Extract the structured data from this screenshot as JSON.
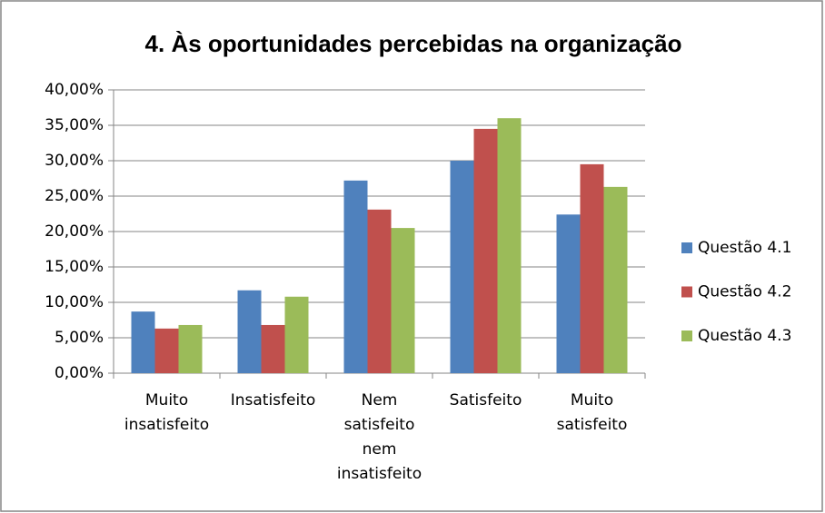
{
  "chart_data": {
    "type": "bar",
    "title": "4. Às oportunidades percebidas na organização",
    "categories": [
      "Muito insatisfeito",
      "Insatisfeito",
      "Nem satisfeito nem insatisfeito",
      "Satisfeito",
      "Muito satisfeito"
    ],
    "series": [
      {
        "name": "Questão 4.1",
        "color": "#4f81bd",
        "values": [
          8.7,
          11.7,
          27.2,
          30.0,
          22.4
        ]
      },
      {
        "name": "Questão 4.2",
        "color": "#c0504d",
        "values": [
          6.3,
          6.8,
          23.1,
          34.5,
          29.5
        ]
      },
      {
        "name": "Questão 4.3",
        "color": "#9bbb59",
        "values": [
          6.8,
          10.8,
          20.5,
          36.0,
          26.3
        ]
      }
    ],
    "ylim": [
      0,
      40
    ],
    "yticks": [
      {
        "value": 0,
        "label": "0,00%"
      },
      {
        "value": 5,
        "label": "5,00%"
      },
      {
        "value": 10,
        "label": "10,00%"
      },
      {
        "value": 15,
        "label": "15,00%"
      },
      {
        "value": 20,
        "label": "20,00%"
      },
      {
        "value": 25,
        "label": "25,00%"
      },
      {
        "value": 30,
        "label": "30,00%"
      },
      {
        "value": 35,
        "label": "35,00%"
      },
      {
        "value": 40,
        "label": "40,00%"
      }
    ],
    "grid": true,
    "legend": "right"
  }
}
